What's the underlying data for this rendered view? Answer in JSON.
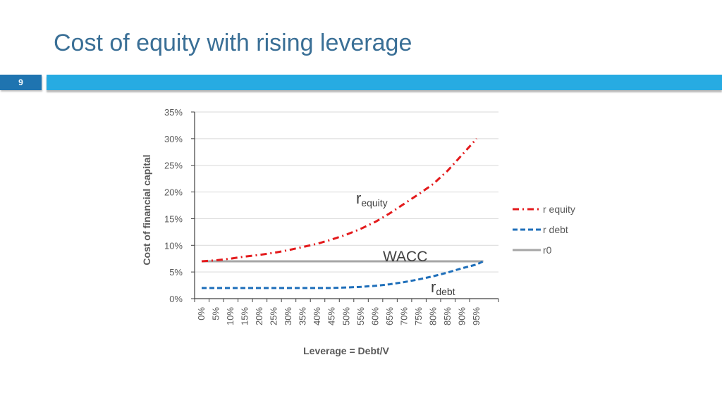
{
  "slide": {
    "title": "Cost of equity with rising leverage",
    "number": "9"
  },
  "colors": {
    "title": "#3a6f96",
    "bar": "#27abe2",
    "number_box": "#1f74b0",
    "r_equity": "#e31a1c",
    "r_debt": "#1f6fba",
    "r0": "#a6a6a6",
    "grid": "#d9d9d9"
  },
  "chart_data": {
    "type": "line",
    "xlabel": "Leverage = Debt/V",
    "ylabel": "Cost of financial capital",
    "x": [
      0,
      5,
      10,
      15,
      20,
      25,
      30,
      35,
      40,
      45,
      50,
      55,
      60,
      65,
      70,
      75,
      80,
      85,
      90,
      95
    ],
    "x_tick_labels": [
      "0%",
      "5%",
      "10%",
      "15%",
      "20%",
      "25%",
      "30%",
      "35%",
      "40%",
      "45%",
      "50%",
      "55%",
      "60%",
      "65%",
      "70%",
      "75%",
      "80%",
      "85%",
      "90%",
      "95%"
    ],
    "ylim": [
      0,
      0.35
    ],
    "y_ticks": [
      0,
      0.05,
      0.1,
      0.15,
      0.2,
      0.25,
      0.3,
      0.35
    ],
    "y_tick_labels": [
      "0%",
      "5%",
      "10%",
      "15%",
      "20%",
      "25%",
      "30%",
      "35%"
    ],
    "grid": true,
    "legend_position": "right",
    "series": [
      {
        "name": "r equity",
        "style": "dash-dot",
        "x": [
          0,
          5,
          10,
          15,
          20,
          25,
          30,
          35,
          40,
          45,
          50,
          55,
          60,
          65,
          70,
          75,
          80,
          85,
          90,
          95
        ],
        "values": [
          0.07,
          0.072,
          0.075,
          0.079,
          0.082,
          0.086,
          0.091,
          0.097,
          0.103,
          0.111,
          0.12,
          0.131,
          0.144,
          0.16,
          0.178,
          0.196,
          0.215,
          0.24,
          0.27,
          0.3
        ]
      },
      {
        "name": "r debt",
        "style": "dashed",
        "x": [
          0,
          5,
          10,
          15,
          20,
          25,
          30,
          35,
          40,
          45,
          50,
          55,
          60,
          65,
          70,
          75,
          80,
          85,
          90,
          95,
          100
        ],
        "values": [
          0.02,
          0.02,
          0.02,
          0.02,
          0.02,
          0.02,
          0.02,
          0.02,
          0.02,
          0.02,
          0.021,
          0.022,
          0.024,
          0.027,
          0.031,
          0.036,
          0.042,
          0.049,
          0.057,
          0.064,
          0.07
        ]
      },
      {
        "name": "r0",
        "style": "solid",
        "x": [
          0,
          100
        ],
        "values": [
          0.07,
          0.07
        ]
      }
    ],
    "annotations": {
      "wacc": "WACC",
      "r_equity_base": "r",
      "r_equity_sub": "equity",
      "r_debt_base": "r",
      "r_debt_sub": "debt"
    }
  }
}
